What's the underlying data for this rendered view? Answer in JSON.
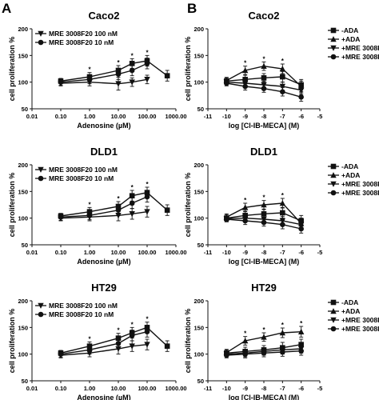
{
  "figure": {
    "panel_letters": [
      "A",
      "B"
    ]
  },
  "chart_data": [
    {
      "id": "A1",
      "panel": "A",
      "type": "line",
      "title": "Caco2",
      "xlabel": "Adenosine (µM)",
      "ylabel": "cell proliferation %",
      "xscale": "log",
      "xlim": [
        0.01,
        1000
      ],
      "ylim": [
        50,
        200
      ],
      "xticks": [
        0.01,
        0.1,
        1,
        10,
        100,
        1000
      ],
      "xtick_labels": [
        "0.01",
        "0.10",
        "1.00",
        "10.00",
        "100.00",
        "1000.00"
      ],
      "yticks": [
        50,
        100,
        150,
        200
      ],
      "ytick_labels": [
        "50",
        "100",
        "150",
        "200"
      ],
      "legend": "top-left",
      "series": [
        {
          "name": "MRE 3008F20 100 nM",
          "marker": "tri-down",
          "x": [
            0.1,
            1,
            10,
            30,
            100
          ],
          "y": [
            98,
            100,
            97,
            100,
            105
          ],
          "err": [
            5,
            7,
            12,
            8,
            8
          ],
          "stars": []
        },
        {
          "name": "MRE 3008F20 10 nM",
          "marker": "circle",
          "x": [
            0.1,
            1,
            10,
            30,
            100
          ],
          "y": [
            100,
            105,
            115,
            122,
            135
          ],
          "err": [
            6,
            8,
            10,
            10,
            10
          ],
          "stars": []
        },
        {
          "name": "",
          "marker": "square",
          "x": [
            0.1,
            1,
            10,
            30,
            100,
            500
          ],
          "y": [
            102,
            110,
            122,
            135,
            140,
            112
          ],
          "err": [
            5,
            8,
            9,
            9,
            10,
            10
          ],
          "stars": [
            1,
            10,
            30,
            100
          ]
        }
      ]
    },
    {
      "id": "B1",
      "panel": "B",
      "type": "line",
      "title": "Caco2",
      "xlabel": "log [Cl-IB-MECA] (M)",
      "ylabel": "cell proliferation %",
      "xscale": "linear",
      "xlim": [
        -11,
        -5
      ],
      "ylim": [
        50,
        200
      ],
      "xticks": [
        -11,
        -10,
        -9,
        -8,
        -7,
        -6,
        -5
      ],
      "xtick_labels": [
        "-11",
        "-10",
        "-9",
        "-8",
        "-7",
        "-6",
        "-5"
      ],
      "yticks": [
        50,
        100,
        150,
        200
      ],
      "ytick_labels": [
        "50",
        "100",
        "150",
        "200"
      ],
      "legend": "top-right",
      "series": [
        {
          "name": "-ADA",
          "marker": "square",
          "x": [
            -10,
            -9,
            -8,
            -7,
            -6
          ],
          "y": [
            102,
            105,
            108,
            110,
            95
          ],
          "err": [
            6,
            8,
            8,
            10,
            10
          ],
          "stars": []
        },
        {
          "name": "+ADA",
          "marker": "tri-up",
          "x": [
            -10,
            -9,
            -8,
            -7,
            -6
          ],
          "y": [
            103,
            122,
            130,
            125,
            92
          ],
          "err": [
            6,
            8,
            8,
            9,
            10
          ],
          "stars": [
            -9,
            -8,
            -7
          ]
        },
        {
          "name": "+MRE 3008F20 100 nM",
          "marker": "tri-down",
          "x": [
            -10,
            -9,
            -8,
            -7,
            -6
          ],
          "y": [
            100,
            98,
            95,
            92,
            85
          ],
          "err": [
            5,
            7,
            7,
            8,
            8
          ],
          "stars": []
        },
        {
          "name": "+MRE 3008F20 10 nM",
          "marker": "circle",
          "x": [
            -10,
            -9,
            -8,
            -7,
            -6
          ],
          "y": [
            98,
            92,
            88,
            82,
            72
          ],
          "err": [
            5,
            7,
            7,
            8,
            8
          ],
          "stars": []
        }
      ]
    },
    {
      "id": "A2",
      "panel": "A",
      "type": "line",
      "title": "DLD1",
      "xlabel": "Adenosine (µM)",
      "ylabel": "cell proliferation %",
      "xscale": "log",
      "xlim": [
        0.01,
        1000
      ],
      "ylim": [
        50,
        200
      ],
      "xticks": [
        0.01,
        0.1,
        1,
        10,
        100,
        1000
      ],
      "xtick_labels": [
        "0.01",
        "0.10",
        "1.00",
        "10.00",
        "100.00",
        "1000.00"
      ],
      "yticks": [
        50,
        100,
        150,
        200
      ],
      "ytick_labels": [
        "50",
        "100",
        "150",
        "200"
      ],
      "legend": "top-left",
      "series": [
        {
          "name": "MRE 3008F20 100 nM",
          "marker": "tri-down",
          "x": [
            0.1,
            1,
            10,
            30,
            100
          ],
          "y": [
            100,
            102,
            105,
            108,
            112
          ],
          "err": [
            5,
            7,
            10,
            10,
            10
          ],
          "stars": []
        },
        {
          "name": "MRE 3008F20 10 nM",
          "marker": "circle",
          "x": [
            0.1,
            1,
            10,
            30,
            100
          ],
          "y": [
            102,
            105,
            115,
            128,
            140
          ],
          "err": [
            6,
            8,
            10,
            10,
            10
          ],
          "stars": []
        },
        {
          "name": "",
          "marker": "square",
          "x": [
            0.1,
            1,
            10,
            30,
            100,
            500
          ],
          "y": [
            104,
            112,
            122,
            142,
            148,
            115
          ],
          "err": [
            5,
            8,
            9,
            10,
            10,
            10
          ],
          "stars": [
            1,
            10,
            30,
            100
          ]
        }
      ]
    },
    {
      "id": "B2",
      "panel": "B",
      "type": "line",
      "title": "DLD1",
      "xlabel": "log [Cl-IB-MECA] (M)",
      "ylabel": "cell proliferation %",
      "xscale": "linear",
      "xlim": [
        -11,
        -5
      ],
      "ylim": [
        50,
        200
      ],
      "xticks": [
        -11,
        -10,
        -9,
        -8,
        -7,
        -6,
        -5
      ],
      "xtick_labels": [
        "-11",
        "-10",
        "-9",
        "-8",
        "-7",
        "-6",
        "-5"
      ],
      "yticks": [
        50,
        100,
        150,
        200
      ],
      "ytick_labels": [
        "50",
        "100",
        "150",
        "200"
      ],
      "legend": "top-right",
      "series": [
        {
          "name": "-ADA",
          "marker": "square",
          "x": [
            -10,
            -9,
            -8,
            -7,
            -6
          ],
          "y": [
            100,
            105,
            108,
            110,
            95
          ],
          "err": [
            6,
            8,
            8,
            10,
            10
          ],
          "stars": []
        },
        {
          "name": "+ADA",
          "marker": "tri-up",
          "x": [
            -10,
            -9,
            -8,
            -7,
            -6
          ],
          "y": [
            102,
            120,
            125,
            128,
            90
          ],
          "err": [
            6,
            8,
            8,
            9,
            10
          ],
          "stars": [
            -9,
            -8,
            -7
          ]
        },
        {
          "name": "+MRE 3008F20 100 nM",
          "marker": "tri-down",
          "x": [
            -10,
            -9,
            -8,
            -7,
            -6
          ],
          "y": [
            99,
            100,
            98,
            95,
            88
          ],
          "err": [
            5,
            7,
            7,
            8,
            8
          ],
          "stars": []
        },
        {
          "name": "+MRE 3008F20 10 nM",
          "marker": "circle",
          "x": [
            -10,
            -9,
            -8,
            -7,
            -6
          ],
          "y": [
            98,
            95,
            92,
            88,
            80
          ],
          "err": [
            5,
            7,
            7,
            8,
            8
          ],
          "stars": []
        }
      ]
    },
    {
      "id": "A3",
      "panel": "A",
      "type": "line",
      "title": "HT29",
      "xlabel": "Adenosine (µM)",
      "ylabel": "cell proliferation %",
      "xscale": "log",
      "xlim": [
        0.01,
        1000
      ],
      "ylim": [
        50,
        200
      ],
      "xticks": [
        0.01,
        0.1,
        1,
        10,
        100,
        1000
      ],
      "xtick_labels": [
        "0.01",
        "0.10",
        "1.00",
        "10.00",
        "100.00",
        "1000.00"
      ],
      "yticks": [
        50,
        100,
        150,
        200
      ],
      "ytick_labels": [
        "50",
        "100",
        "150",
        "200"
      ],
      "legend": "top-left",
      "series": [
        {
          "name": "MRE 3008F20 100 nM",
          "marker": "tri-down",
          "x": [
            0.1,
            1,
            10,
            30,
            100
          ],
          "y": [
            98,
            102,
            110,
            115,
            118
          ],
          "err": [
            5,
            7,
            10,
            10,
            10
          ],
          "stars": []
        },
        {
          "name": "MRE 3008F20 10 nM",
          "marker": "circle",
          "x": [
            0.1,
            1,
            10,
            30,
            100
          ],
          "y": [
            100,
            108,
            120,
            135,
            142
          ],
          "err": [
            6,
            8,
            10,
            10,
            10
          ],
          "stars": []
        },
        {
          "name": "",
          "marker": "square",
          "x": [
            0.1,
            1,
            10,
            30,
            100,
            500
          ],
          "y": [
            102,
            115,
            130,
            140,
            150,
            115
          ],
          "err": [
            5,
            8,
            9,
            10,
            10,
            10
          ],
          "stars": [
            1,
            10,
            30,
            100
          ]
        }
      ]
    },
    {
      "id": "B3",
      "panel": "B",
      "type": "line",
      "title": "HT29",
      "xlabel": "log [Cl-IB-MECA] (M)",
      "ylabel": "cell proliferation %",
      "xscale": "linear",
      "xlim": [
        -11,
        -5
      ],
      "ylim": [
        50,
        200
      ],
      "xticks": [
        -11,
        -10,
        -9,
        -8,
        -7,
        -6,
        -5
      ],
      "xtick_labels": [
        "-11",
        "-10",
        "-9",
        "-8",
        "-7",
        "-6",
        "-5"
      ],
      "yticks": [
        50,
        100,
        150,
        200
      ],
      "ytick_labels": [
        "50",
        "100",
        "150",
        "200"
      ],
      "legend": "top-right",
      "series": [
        {
          "name": "-ADA",
          "marker": "square",
          "x": [
            -10,
            -9,
            -8,
            -7,
            -6
          ],
          "y": [
            102,
            105,
            108,
            112,
            118
          ],
          "err": [
            6,
            8,
            8,
            10,
            10
          ],
          "stars": []
        },
        {
          "name": "+ADA",
          "marker": "tri-up",
          "x": [
            -10,
            -9,
            -8,
            -7,
            -6
          ],
          "y": [
            103,
            125,
            132,
            140,
            142
          ],
          "err": [
            6,
            8,
            8,
            9,
            10
          ],
          "stars": [
            -9,
            -8,
            -7,
            -6
          ]
        },
        {
          "name": "+MRE 3008F20 100 nM",
          "marker": "tri-down",
          "x": [
            -10,
            -9,
            -8,
            -7,
            -6
          ],
          "y": [
            100,
            102,
            105,
            108,
            110
          ],
          "err": [
            5,
            7,
            7,
            8,
            8
          ],
          "stars": []
        },
        {
          "name": "+MRE 3008F20 10 nM",
          "marker": "circle",
          "x": [
            -10,
            -9,
            -8,
            -7,
            -6
          ],
          "y": [
            98,
            100,
            102,
            104,
            106
          ],
          "err": [
            5,
            7,
            7,
            8,
            8
          ],
          "stars": []
        }
      ]
    }
  ]
}
